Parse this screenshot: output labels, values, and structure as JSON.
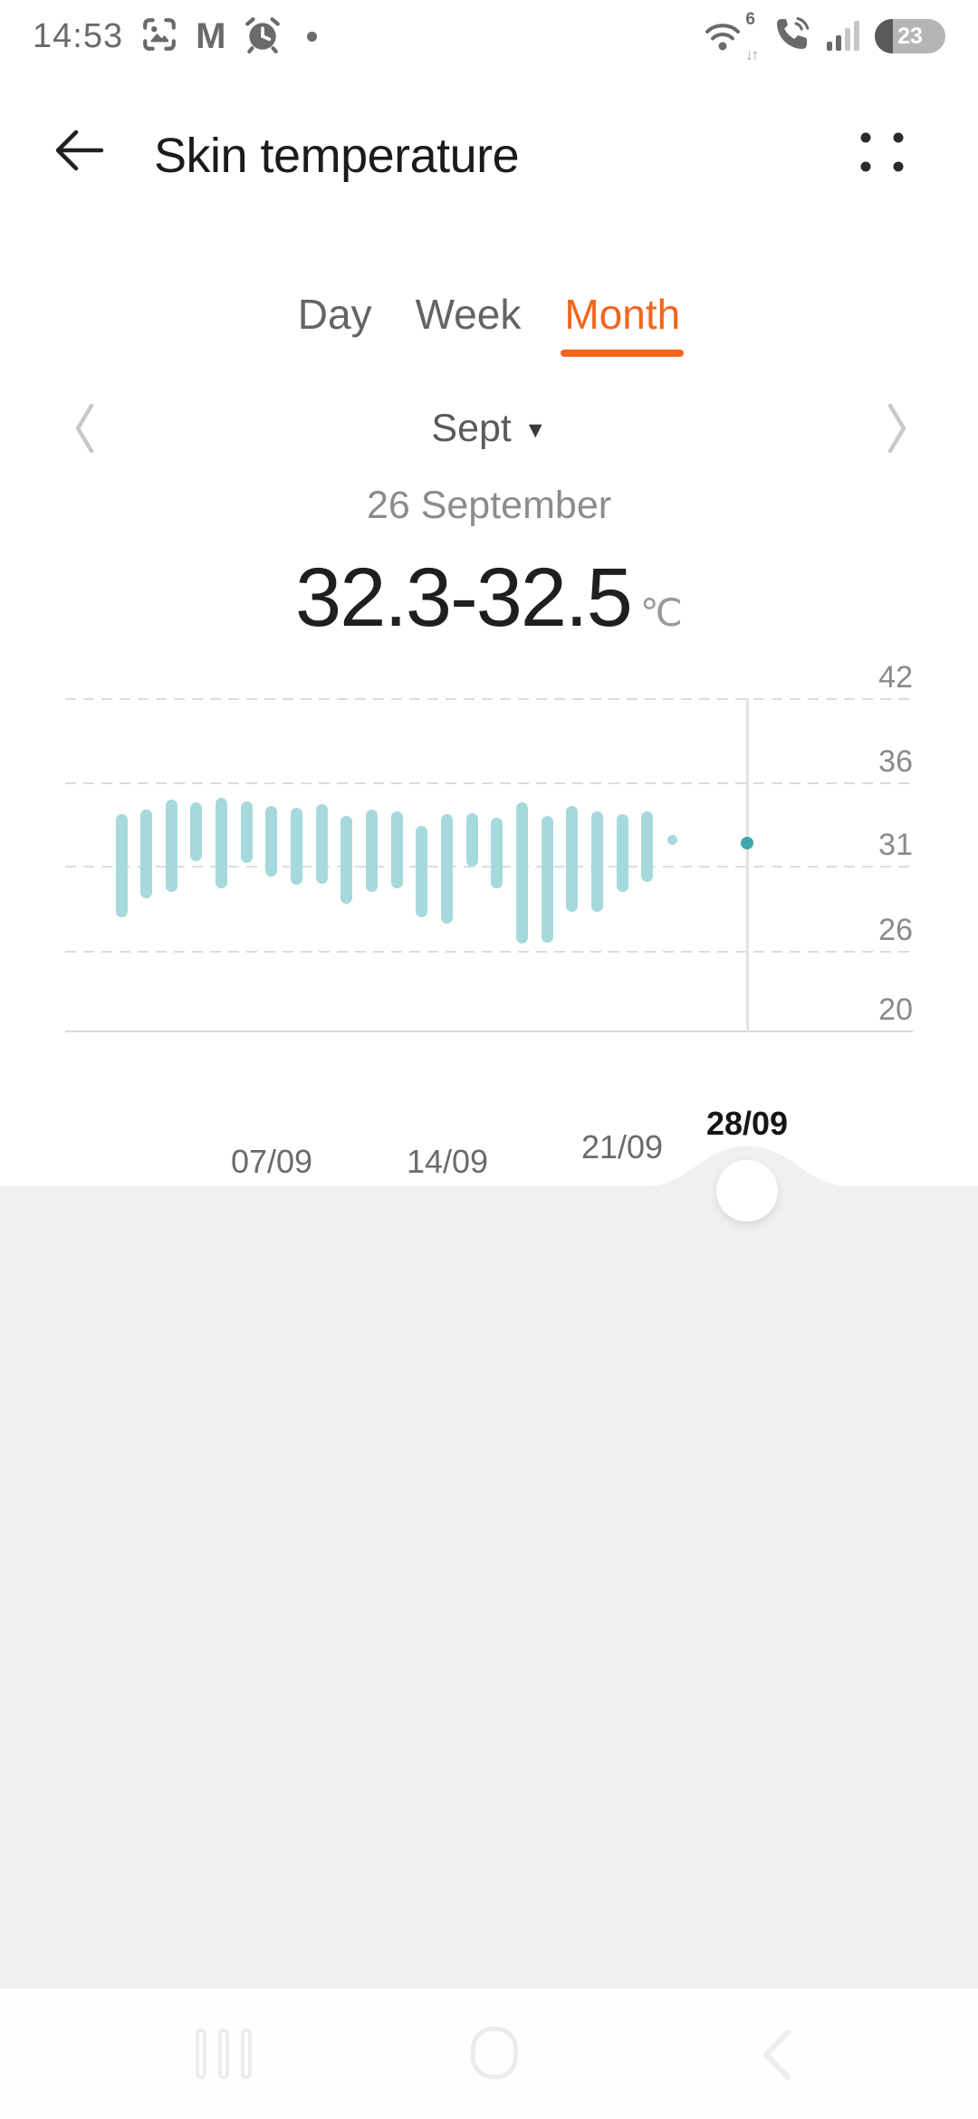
{
  "status_bar": {
    "time": "14:53",
    "gmail_letter": "M",
    "left_icons": [
      "screenshot-icon",
      "gmail-icon",
      "alarm-icon",
      "notification-dot"
    ],
    "wifi_standard": "6",
    "wifi_arrows": "↓↑",
    "right_icons": [
      "wifi-icon",
      "wifi-calling-icon",
      "signal-icon",
      "battery-icon"
    ],
    "battery_percent": "23"
  },
  "header": {
    "title": "Skin temperature"
  },
  "tabs": {
    "items": [
      {
        "label": "Day",
        "active": false
      },
      {
        "label": "Week",
        "active": false
      },
      {
        "label": "Month",
        "active": true
      }
    ]
  },
  "period_selector": {
    "month_label": "Sept"
  },
  "reading": {
    "date_label": "26 September",
    "value_range": "32.3-32.5",
    "unit": "℃"
  },
  "chart_data": {
    "type": "bar",
    "subtype": "floating-range-bars",
    "title": "Skin temperature per day, September (min–max °C)",
    "unit": "°C",
    "ylim": [
      20,
      42
    ],
    "y_ticks": [
      42,
      36,
      31,
      26,
      20
    ],
    "grid": "dashed-horizontal",
    "selected_day": 26,
    "x_ticks": [
      {
        "day": 7,
        "label": "07/09",
        "selected": false
      },
      {
        "day": 14,
        "label": "14/09",
        "selected": false
      },
      {
        "day": 21,
        "label": "21/09",
        "selected": false
      },
      {
        "day": 28,
        "label": "28/09",
        "selected": true
      }
    ],
    "series": [
      {
        "day": 1,
        "min": 28.0,
        "max": 34.1
      },
      {
        "day": 2,
        "min": 29.1,
        "max": 34.4
      },
      {
        "day": 3,
        "min": 29.5,
        "max": 35.0
      },
      {
        "day": 4,
        "min": 31.3,
        "max": 34.8
      },
      {
        "day": 5,
        "min": 29.7,
        "max": 35.1
      },
      {
        "day": 6,
        "min": 31.2,
        "max": 34.9
      },
      {
        "day": 7,
        "min": 30.4,
        "max": 34.6
      },
      {
        "day": 8,
        "min": 29.9,
        "max": 34.5
      },
      {
        "day": 9,
        "min": 30.0,
        "max": 34.7
      },
      {
        "day": 10,
        "min": 28.8,
        "max": 34.0
      },
      {
        "day": 11,
        "min": 29.5,
        "max": 34.4
      },
      {
        "day": 12,
        "min": 29.7,
        "max": 34.3
      },
      {
        "day": 13,
        "min": 28.0,
        "max": 33.4
      },
      {
        "day": 14,
        "min": 27.6,
        "max": 34.1
      },
      {
        "day": 15,
        "min": 31.0,
        "max": 34.2
      },
      {
        "day": 16,
        "min": 29.7,
        "max": 33.9
      },
      {
        "day": 17,
        "min": 26.4,
        "max": 34.8
      },
      {
        "day": 18,
        "min": 26.5,
        "max": 34.0
      },
      {
        "day": 19,
        "min": 28.3,
        "max": 34.6
      },
      {
        "day": 20,
        "min": 28.3,
        "max": 34.3
      },
      {
        "day": 21,
        "min": 29.5,
        "max": 34.1
      },
      {
        "day": 22,
        "min": 30.1,
        "max": 34.3
      },
      {
        "day": 23,
        "min": 32.6,
        "max": 32.6
      },
      {
        "day": 26,
        "min": 32.3,
        "max": 32.5
      }
    ]
  },
  "colors": {
    "accent_orange": "#f4651d",
    "bar_teal": "#a6d9dc",
    "selected_dot_teal": "#42a8b0",
    "panel_gray": "#f0f0f0",
    "selection_line": "#e2e2e2"
  }
}
